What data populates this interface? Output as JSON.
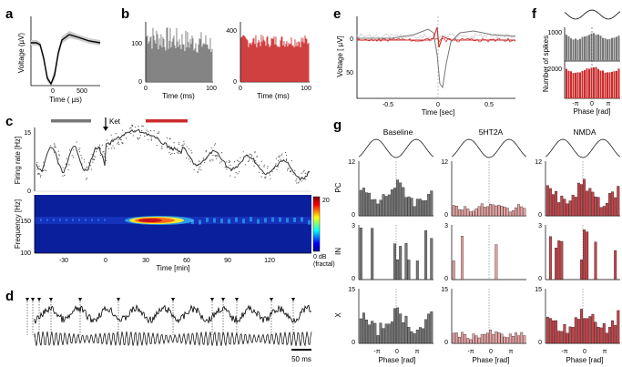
{
  "figure": {
    "panels": {
      "a": {
        "letter": "a",
        "ylabel": "Voltage (µV)",
        "xlabel": "Time ( µs)",
        "xticks": [
          "0",
          "500"
        ]
      },
      "b": {
        "letter": "b",
        "xlabel_left": "Time (ms)",
        "xlabel_right": "Time (ms)",
        "left_yticks": [
          "0",
          "100"
        ],
        "left_xticks": [
          "0",
          "100"
        ],
        "right_yticks": [
          "0",
          "400"
        ],
        "right_xticks": [
          "0",
          "100"
        ]
      },
      "c": {
        "letter": "c",
        "ket_label": "Ket",
        "ylabel_top": "Firing rate [Hz]",
        "yticks_top": [
          "0",
          "15"
        ],
        "ylabel_bottom": "Frequency [Hz]",
        "yticks_bottom": [
          "100",
          "150"
        ],
        "xlabel": "Time [min]",
        "xticks": [
          "-30",
          "0",
          "30",
          "60",
          "90",
          "120"
        ],
        "colorbar_max": "20",
        "colorbar_min": "0 dB",
        "colorbar_unit": "(fractal)"
      },
      "d": {
        "letter": "d",
        "scale_label": "50 ms"
      },
      "e": {
        "letter": "e",
        "ylabel": "Voltage [  µV]",
        "xlabel": "Time [sec]",
        "yticks": [
          "0",
          "50"
        ],
        "xticks": [
          "-0.5",
          "0",
          "0.5"
        ]
      },
      "f": {
        "letter": "f",
        "ylabel": "Number of spikes",
        "xlabel": "Phase [rad]",
        "yticks": [
          "1000",
          "2000"
        ],
        "xticks": [
          "-π",
          "0",
          "π"
        ]
      },
      "g": {
        "letter": "g",
        "columns": [
          "Baseline",
          "5HT2A",
          "NMDA"
        ],
        "rows": [
          "PC",
          "IN",
          "X"
        ],
        "row_max": [
          [
            "12",
            "12",
            "12"
          ],
          [
            "3",
            "3",
            "3"
          ],
          [
            "15",
            "15",
            "15"
          ]
        ],
        "zero": "0",
        "xticks": [
          "-π",
          "0",
          "π"
        ],
        "xlabel": "Phase [rad]"
      }
    },
    "colors": {
      "gray": "#777777",
      "red": "#cc2b2b",
      "light_red": "#e8a3a3",
      "shade": "#cccccc"
    }
  }
}
